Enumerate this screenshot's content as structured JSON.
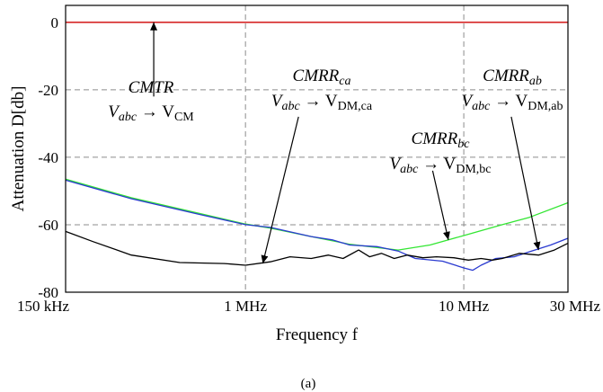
{
  "chart_data": {
    "type": "line",
    "xscale": "log",
    "xlim": [
      150000,
      30000000
    ],
    "ylim": [
      -80,
      5
    ],
    "xlabel": "Frequency f",
    "ylabel": "Attenuation D[db]",
    "caption": "(a)",
    "grid": true,
    "x_ticks": [
      {
        "value": 150000,
        "label": "150 kHz"
      },
      {
        "value": 1000000,
        "label": "1 MHz"
      },
      {
        "value": 10000000,
        "label": "10 MHz"
      },
      {
        "value": 30000000,
        "label": "30 MHz"
      }
    ],
    "y_ticks": [
      {
        "value": 0,
        "label": "0"
      },
      {
        "value": -20,
        "label": "-20"
      },
      {
        "value": -40,
        "label": "-40"
      },
      {
        "value": -60,
        "label": "-60"
      },
      {
        "value": -80,
        "label": "-80"
      }
    ],
    "series": [
      {
        "name": "CMTR",
        "color": "#d62728",
        "x": [
          150000,
          30000000
        ],
        "y": [
          0,
          0
        ]
      },
      {
        "name": "CMRR_bc",
        "color": "#33e633",
        "x": [
          150000,
          300000,
          600000,
          1000000,
          1300000,
          2000000,
          3000000,
          5000000,
          7000000,
          10000000,
          15000000,
          20000000,
          30000000
        ],
        "y": [
          -46.5,
          -52,
          -56.5,
          -59.8,
          -61,
          -63.5,
          -65.8,
          -67.5,
          -66,
          -63.2,
          -60,
          -57.8,
          -53.5
        ]
      },
      {
        "name": "CMRR_ab",
        "color": "#2a3ad0",
        "x": [
          150000,
          300000,
          600000,
          1000000,
          1300000,
          2000000,
          2500000,
          3000000,
          4000000,
          5000000,
          6000000,
          8000000,
          10000000,
          11000000,
          12000000,
          14000000,
          17000000,
          20000000,
          25000000,
          30000000
        ],
        "y": [
          -46.8,
          -52.3,
          -56.8,
          -60,
          -60.8,
          -63.5,
          -64.5,
          -66,
          -66.5,
          -67.8,
          -70,
          -70.8,
          -72.8,
          -73.5,
          -72,
          -70,
          -69.5,
          -68,
          -66,
          -64
        ]
      },
      {
        "name": "CMRR_ca",
        "color": "#000000",
        "x": [
          150000,
          200000,
          300000,
          500000,
          800000,
          1000000,
          1300000,
          1600000,
          2000000,
          2400000,
          2800000,
          3300000,
          3700000,
          4200000,
          4800000,
          5500000,
          6500000,
          7500000,
          9000000,
          10500000,
          12000000,
          13500000,
          15000000,
          18000000,
          22000000,
          26000000,
          30000000
        ],
        "y": [
          -62,
          -65,
          -69,
          -71.2,
          -71.5,
          -72,
          -71,
          -69.5,
          -70,
          -69,
          -70,
          -67.5,
          -69.5,
          -68.5,
          -70,
          -69,
          -69.8,
          -69.5,
          -69.8,
          -70.5,
          -70,
          -70.5,
          -70,
          -68.5,
          -69,
          -67.5,
          -65.5
        ]
      }
    ],
    "annotations": [
      {
        "id": "cmtr",
        "line1": "CMTR",
        "line1_sub": "",
        "line2_a": "V",
        "line2_a_sub": "abc",
        "line2_arrow": "→",
        "line2_b": "V",
        "line2_b_sub": "CM",
        "arrow_from": [
          380000,
          -22
        ],
        "arrow_to": [
          380000,
          0
        ]
      },
      {
        "id": "ca",
        "line1": "CMRR",
        "line1_sub": "ca",
        "line2_a": "V",
        "line2_a_sub": "abc",
        "line2_arrow": "→",
        "line2_b": "V",
        "line2_b_sub": "DM,ca",
        "arrow_from": [
          1750000,
          -28
        ],
        "arrow_to": [
          1200000,
          -71.5
        ]
      },
      {
        "id": "ab",
        "line1": "CMRR",
        "line1_sub": "ab",
        "line2_a": "V",
        "line2_a_sub": "abc",
        "line2_arrow": "→",
        "line2_b": "V",
        "line2_b_sub": "DM,ab",
        "arrow_from": [
          16500000,
          -28
        ],
        "arrow_to": [
          22000000,
          -67.5
        ]
      },
      {
        "id": "bc",
        "line1": "CMRR",
        "line1_sub": "bc",
        "line2_a": "V",
        "line2_a_sub": "abc",
        "line2_arrow": "→",
        "line2_b": "V",
        "line2_b_sub": "DM,bc",
        "arrow_from": [
          7200000,
          -44
        ],
        "arrow_to": [
          8500000,
          -64.5
        ]
      }
    ]
  }
}
